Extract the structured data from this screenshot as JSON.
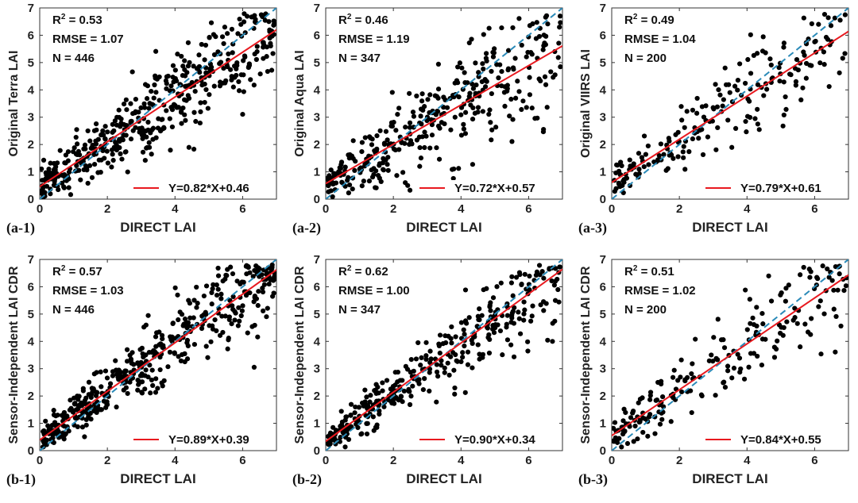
{
  "figure": {
    "colors": {
      "points": "#000000",
      "fit_line": "#e8191f",
      "one_to_one": "#2a8ab8",
      "axes": "#333333"
    }
  },
  "chart_data": [
    {
      "id": "a-1",
      "panel_label": "(a-1)",
      "type": "scatter",
      "xlabel": "DIRECT LAI",
      "ylabel": "Original Terra LAI",
      "xlim": [
        0,
        7
      ],
      "ylim": [
        0,
        7
      ],
      "xticks": [
        "0",
        "2",
        "4",
        "6"
      ],
      "yticks": [
        "0",
        "1",
        "2",
        "3",
        "4",
        "5",
        "6",
        "7"
      ],
      "r2_label": "R",
      "r2_sup": "2",
      "r2": "= 0.53",
      "rmse": "RMSE = 1.07",
      "n": "N = 446",
      "fit": {
        "slope": 0.82,
        "intercept": 0.46,
        "label": "Y=0.82*X+0.46"
      },
      "seed": 11,
      "count": 446,
      "noise": 0.85,
      "series": [
        {
          "name": "fit",
          "x": [
            0,
            7
          ],
          "y": [
            0.46,
            6.2
          ]
        },
        {
          "name": "1:1",
          "x": [
            0,
            7
          ],
          "y": [
            0,
            7
          ]
        }
      ]
    },
    {
      "id": "a-2",
      "panel_label": "(a-2)",
      "type": "scatter",
      "xlabel": "DIRECT LAI",
      "ylabel": "Original Aqua LAI",
      "xlim": [
        0,
        7
      ],
      "ylim": [
        0,
        7
      ],
      "xticks": [
        "0",
        "2",
        "4",
        "6"
      ],
      "yticks": [
        "0",
        "1",
        "2",
        "3",
        "4",
        "5",
        "6",
        "7"
      ],
      "r2_label": "R",
      "r2_sup": "2",
      "r2": "= 0.46",
      "rmse": "RMSE = 1.19",
      "n": "N = 347",
      "fit": {
        "slope": 0.72,
        "intercept": 0.57,
        "label": "Y=0.72*X+0.57"
      },
      "seed": 23,
      "count": 347,
      "noise": 0.95,
      "series": [
        {
          "name": "fit",
          "x": [
            0,
            7
          ],
          "y": [
            0.57,
            5.61
          ]
        },
        {
          "name": "1:1",
          "x": [
            0,
            7
          ],
          "y": [
            0,
            7
          ]
        }
      ]
    },
    {
      "id": "a-3",
      "panel_label": "(a-3)",
      "type": "scatter",
      "xlabel": "DIRECT LAI",
      "ylabel": "Original VIIRS LAI",
      "xlim": [
        0,
        7
      ],
      "ylim": [
        0,
        7
      ],
      "xticks": [
        "0",
        "2",
        "4",
        "6"
      ],
      "yticks": [
        "0",
        "1",
        "2",
        "3",
        "4",
        "5",
        "6",
        "7"
      ],
      "r2_label": "R",
      "r2_sup": "2",
      "r2": "= 0.49",
      "rmse": "RMSE = 1.04",
      "n": "N = 200",
      "fit": {
        "slope": 0.79,
        "intercept": 0.61,
        "label": "Y=0.79*X+0.61"
      },
      "seed": 37,
      "count": 200,
      "noise": 0.85,
      "series": [
        {
          "name": "fit",
          "x": [
            0,
            7
          ],
          "y": [
            0.61,
            6.14
          ]
        },
        {
          "name": "1:1",
          "x": [
            0,
            7
          ],
          "y": [
            0,
            7
          ]
        }
      ]
    },
    {
      "id": "b-1",
      "panel_label": "(b-1)",
      "type": "scatter",
      "xlabel": "DIRECT LAI",
      "ylabel": "Sensor-Independent LAI CDR",
      "xlim": [
        0,
        7
      ],
      "ylim": [
        0,
        7
      ],
      "xticks": [
        "0",
        "2",
        "4",
        "6"
      ],
      "yticks": [
        "0",
        "1",
        "2",
        "3",
        "4",
        "5",
        "6",
        "7"
      ],
      "r2_label": "R",
      "r2_sup": "2",
      "r2": "= 0.57",
      "rmse": "RMSE = 1.03",
      "n": "N = 446",
      "fit": {
        "slope": 0.89,
        "intercept": 0.39,
        "label": "Y=0.89*X+0.39"
      },
      "seed": 41,
      "count": 446,
      "noise": 0.8,
      "series": [
        {
          "name": "fit",
          "x": [
            0,
            7
          ],
          "y": [
            0.39,
            6.62
          ]
        },
        {
          "name": "1:1",
          "x": [
            0,
            7
          ],
          "y": [
            0,
            7
          ]
        }
      ]
    },
    {
      "id": "b-2",
      "panel_label": "(b-2)",
      "type": "scatter",
      "xlabel": "DIRECT LAI",
      "ylabel": "Sensor-Independent LAI CDR",
      "xlim": [
        0,
        7
      ],
      "ylim": [
        0,
        7
      ],
      "xticks": [
        "0",
        "2",
        "4",
        "6"
      ],
      "yticks": [
        "0",
        "1",
        "2",
        "3",
        "4",
        "5",
        "6",
        "7"
      ],
      "r2_label": "R",
      "r2_sup": "2",
      "r2": "= 0.62",
      "rmse": "RMSE = 1.00",
      "n": "N = 347",
      "fit": {
        "slope": 0.9,
        "intercept": 0.34,
        "label": "Y=0.90*X+0.34"
      },
      "seed": 53,
      "count": 347,
      "noise": 0.75,
      "series": [
        {
          "name": "fit",
          "x": [
            0,
            7
          ],
          "y": [
            0.34,
            6.64
          ]
        },
        {
          "name": "1:1",
          "x": [
            0,
            7
          ],
          "y": [
            0,
            7
          ]
        }
      ]
    },
    {
      "id": "b-3",
      "panel_label": "(b-3)",
      "type": "scatter",
      "xlabel": "DIRECT LAI",
      "ylabel": "Sensor-Independent LAI CDR",
      "xlim": [
        0,
        7
      ],
      "ylim": [
        0,
        7
      ],
      "xticks": [
        "0",
        "2",
        "4",
        "6"
      ],
      "yticks": [
        "0",
        "1",
        "2",
        "3",
        "4",
        "5",
        "6",
        "7"
      ],
      "r2_label": "R",
      "r2_sup": "2",
      "r2": "= 0.51",
      "rmse": "RMSE = 1.02",
      "n": "N = 200",
      "fit": {
        "slope": 0.84,
        "intercept": 0.55,
        "label": "Y=0.84*X+0.55"
      },
      "seed": 67,
      "count": 200,
      "noise": 0.8,
      "series": [
        {
          "name": "fit",
          "x": [
            0,
            7
          ],
          "y": [
            0.55,
            6.43
          ]
        },
        {
          "name": "1:1",
          "x": [
            0,
            7
          ],
          "y": [
            0,
            7
          ]
        }
      ]
    }
  ]
}
